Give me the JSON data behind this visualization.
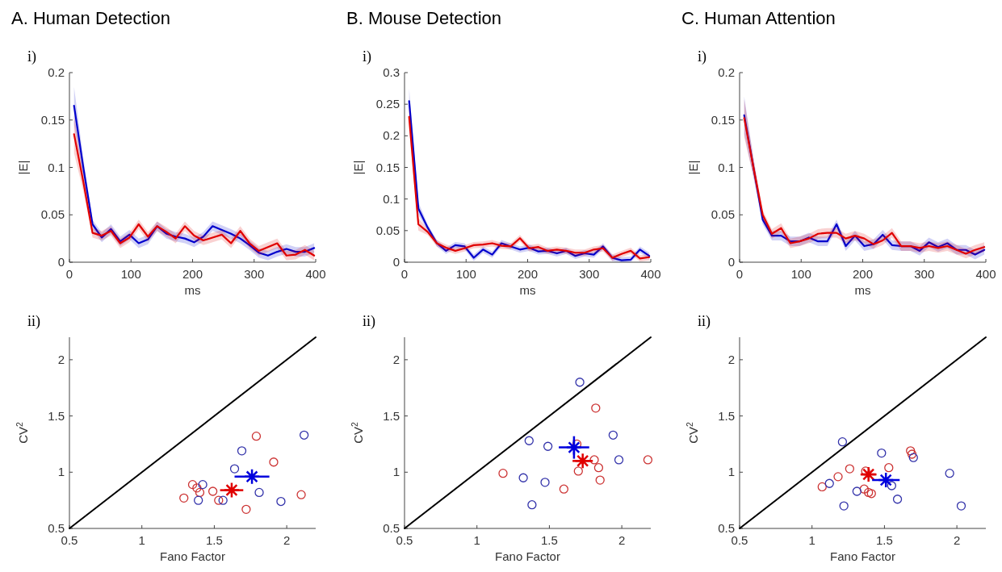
{
  "chart_data": [
    {
      "type": "line",
      "title": "A.  Human Detection",
      "annotations": [
        "i)"
      ],
      "xlabel": "ms",
      "ylabel": "|E|",
      "xlim": [
        0,
        400
      ],
      "xticks": [
        0,
        100,
        200,
        300,
        400
      ],
      "ylim": [
        0,
        0.2
      ],
      "yticks": [
        0,
        0.05,
        0.1,
        0.15,
        0.2
      ],
      "x": [
        7.5,
        22.5,
        37.5,
        52.5,
        67.5,
        82.5,
        97.5,
        112.5,
        127.5,
        142.5,
        157.5,
        172.5,
        187.5,
        202.5,
        217.5,
        232.5,
        247.5,
        262.5,
        277.5,
        292.5,
        307.5,
        322.5,
        337.5,
        352.5,
        367.5,
        382.5,
        397.5
      ],
      "series": [
        {
          "color": "#0000cc",
          "values": [
            0.165,
            0.1,
            0.04,
            0.026,
            0.035,
            0.022,
            0.029,
            0.02,
            0.024,
            0.038,
            0.03,
            0.027,
            0.025,
            0.021,
            0.027,
            0.038,
            0.034,
            0.03,
            0.025,
            0.018,
            0.01,
            0.007,
            0.011,
            0.014,
            0.011,
            0.011,
            0.015
          ],
          "lower": [
            0.145,
            0.09,
            0.035,
            0.021,
            0.03,
            0.017,
            0.024,
            0.015,
            0.019,
            0.033,
            0.025,
            0.022,
            0.02,
            0.016,
            0.022,
            0.033,
            0.029,
            0.025,
            0.02,
            0.013,
            0.005,
            0.002,
            0.006,
            0.009,
            0.006,
            0.006,
            0.01
          ],
          "upper": [
            0.185,
            0.11,
            0.045,
            0.031,
            0.04,
            0.027,
            0.034,
            0.025,
            0.029,
            0.043,
            0.035,
            0.032,
            0.03,
            0.026,
            0.032,
            0.043,
            0.039,
            0.035,
            0.03,
            0.023,
            0.015,
            0.012,
            0.016,
            0.019,
            0.016,
            0.016,
            0.02
          ]
        },
        {
          "color": "#e00000",
          "values": [
            0.135,
            0.085,
            0.031,
            0.028,
            0.033,
            0.02,
            0.026,
            0.04,
            0.027,
            0.038,
            0.032,
            0.025,
            0.038,
            0.028,
            0.023,
            0.026,
            0.029,
            0.02,
            0.033,
            0.02,
            0.012,
            0.016,
            0.02,
            0.007,
            0.008,
            0.013,
            0.007
          ],
          "lower": [
            0.115,
            0.075,
            0.026,
            0.023,
            0.028,
            0.015,
            0.021,
            0.035,
            0.022,
            0.033,
            0.027,
            0.02,
            0.033,
            0.023,
            0.018,
            0.021,
            0.024,
            0.015,
            0.028,
            0.015,
            0.007,
            0.011,
            0.015,
            0.002,
            0.003,
            0.008,
            0.002
          ],
          "upper": [
            0.155,
            0.095,
            0.036,
            0.033,
            0.038,
            0.025,
            0.031,
            0.045,
            0.032,
            0.043,
            0.037,
            0.03,
            0.043,
            0.033,
            0.028,
            0.031,
            0.034,
            0.025,
            0.038,
            0.025,
            0.017,
            0.021,
            0.025,
            0.012,
            0.013,
            0.018,
            0.012
          ]
        }
      ]
    },
    {
      "type": "line",
      "title": "B.  Mouse Detection",
      "annotations": [
        "i)"
      ],
      "xlabel": "ms",
      "ylabel": "|E|",
      "xlim": [
        0,
        400
      ],
      "xticks": [
        0,
        100,
        200,
        300,
        400
      ],
      "ylim": [
        0,
        0.3
      ],
      "yticks": [
        0,
        0.05,
        0.1,
        0.15,
        0.2,
        0.25,
        0.3
      ],
      "x": [
        7.5,
        22.5,
        37.5,
        52.5,
        67.5,
        82.5,
        97.5,
        112.5,
        127.5,
        142.5,
        157.5,
        172.5,
        187.5,
        202.5,
        217.5,
        232.5,
        247.5,
        262.5,
        277.5,
        292.5,
        307.5,
        322.5,
        337.5,
        352.5,
        367.5,
        382.5,
        397.5
      ],
      "series": [
        {
          "color": "#0000cc",
          "values": [
            0.255,
            0.085,
            0.055,
            0.03,
            0.018,
            0.027,
            0.025,
            0.007,
            0.02,
            0.012,
            0.03,
            0.025,
            0.02,
            0.023,
            0.017,
            0.018,
            0.014,
            0.018,
            0.01,
            0.014,
            0.012,
            0.025,
            0.007,
            0.003,
            0.004,
            0.02,
            0.01
          ],
          "lower": [
            0.235,
            0.075,
            0.05,
            0.025,
            0.013,
            0.022,
            0.02,
            0.002,
            0.015,
            0.007,
            0.025,
            0.02,
            0.015,
            0.018,
            0.012,
            0.013,
            0.009,
            0.013,
            0.005,
            0.009,
            0.007,
            0.02,
            0.002,
            0,
            0,
            0.015,
            0.005
          ],
          "upper": [
            0.275,
            0.095,
            0.06,
            0.035,
            0.023,
            0.032,
            0.03,
            0.012,
            0.025,
            0.017,
            0.035,
            0.03,
            0.025,
            0.028,
            0.022,
            0.023,
            0.019,
            0.023,
            0.015,
            0.019,
            0.017,
            0.03,
            0.012,
            0.008,
            0.009,
            0.025,
            0.015
          ]
        },
        {
          "color": "#e00000",
          "values": [
            0.23,
            0.06,
            0.048,
            0.03,
            0.023,
            0.018,
            0.022,
            0.027,
            0.028,
            0.03,
            0.026,
            0.025,
            0.038,
            0.022,
            0.024,
            0.018,
            0.02,
            0.018,
            0.015,
            0.015,
            0.02,
            0.022,
            0.007,
            0.013,
            0.018,
            0.006,
            0.008
          ],
          "lower": [
            0.21,
            0.05,
            0.043,
            0.025,
            0.018,
            0.013,
            0.017,
            0.022,
            0.023,
            0.025,
            0.021,
            0.02,
            0.033,
            0.017,
            0.019,
            0.013,
            0.015,
            0.013,
            0.01,
            0.01,
            0.015,
            0.017,
            0.002,
            0.008,
            0.013,
            0.001,
            0.003
          ],
          "upper": [
            0.25,
            0.07,
            0.053,
            0.035,
            0.028,
            0.023,
            0.027,
            0.032,
            0.033,
            0.035,
            0.031,
            0.03,
            0.043,
            0.027,
            0.029,
            0.023,
            0.025,
            0.023,
            0.02,
            0.02,
            0.025,
            0.027,
            0.012,
            0.018,
            0.023,
            0.011,
            0.013
          ]
        }
      ]
    },
    {
      "type": "line",
      "title": "C.  Human Attention",
      "annotations": [
        "i)"
      ],
      "xlabel": "ms",
      "ylabel": "|E|",
      "xlim": [
        0,
        400
      ],
      "xticks": [
        0,
        100,
        200,
        300,
        400
      ],
      "ylim": [
        0,
        0.2
      ],
      "yticks": [
        0,
        0.05,
        0.1,
        0.15,
        0.2
      ],
      "x": [
        7.5,
        22.5,
        37.5,
        52.5,
        67.5,
        82.5,
        97.5,
        112.5,
        127.5,
        142.5,
        157.5,
        172.5,
        187.5,
        202.5,
        217.5,
        232.5,
        247.5,
        262.5,
        277.5,
        292.5,
        307.5,
        322.5,
        337.5,
        352.5,
        367.5,
        382.5,
        397.5
      ],
      "series": [
        {
          "color": "#0000cc",
          "values": [
            0.155,
            0.1,
            0.045,
            0.028,
            0.028,
            0.022,
            0.022,
            0.026,
            0.022,
            0.022,
            0.04,
            0.017,
            0.028,
            0.017,
            0.019,
            0.029,
            0.018,
            0.017,
            0.017,
            0.012,
            0.021,
            0.016,
            0.02,
            0.013,
            0.013,
            0.008,
            0.013
          ],
          "lower": [
            0.135,
            0.09,
            0.04,
            0.023,
            0.023,
            0.017,
            0.017,
            0.021,
            0.017,
            0.017,
            0.035,
            0.012,
            0.023,
            0.012,
            0.014,
            0.024,
            0.013,
            0.012,
            0.012,
            0.007,
            0.016,
            0.011,
            0.015,
            0.008,
            0.008,
            0.003,
            0.008
          ],
          "upper": [
            0.175,
            0.11,
            0.05,
            0.033,
            0.033,
            0.027,
            0.027,
            0.031,
            0.027,
            0.027,
            0.045,
            0.022,
            0.033,
            0.022,
            0.024,
            0.034,
            0.023,
            0.022,
            0.022,
            0.017,
            0.026,
            0.021,
            0.025,
            0.018,
            0.018,
            0.013,
            0.018
          ]
        },
        {
          "color": "#e00000",
          "values": [
            0.152,
            0.1,
            0.05,
            0.03,
            0.036,
            0.02,
            0.022,
            0.025,
            0.03,
            0.031,
            0.031,
            0.025,
            0.028,
            0.025,
            0.019,
            0.023,
            0.031,
            0.017,
            0.017,
            0.015,
            0.017,
            0.015,
            0.017,
            0.013,
            0.009,
            0.013,
            0.016
          ],
          "lower": [
            0.132,
            0.09,
            0.045,
            0.025,
            0.031,
            0.015,
            0.017,
            0.02,
            0.025,
            0.026,
            0.026,
            0.02,
            0.023,
            0.02,
            0.014,
            0.018,
            0.026,
            0.012,
            0.012,
            0.01,
            0.012,
            0.01,
            0.012,
            0.008,
            0.004,
            0.008,
            0.011
          ],
          "upper": [
            0.172,
            0.11,
            0.055,
            0.035,
            0.041,
            0.025,
            0.027,
            0.03,
            0.035,
            0.036,
            0.036,
            0.03,
            0.033,
            0.03,
            0.024,
            0.028,
            0.036,
            0.022,
            0.022,
            0.02,
            0.022,
            0.02,
            0.022,
            0.018,
            0.014,
            0.018,
            0.021
          ]
        }
      ]
    },
    {
      "type": "scatter",
      "annotations": [
        "ii)"
      ],
      "xlabel": "Fano Factor",
      "ylabel": "CV$^{2}$",
      "xlim": [
        0.5,
        2.2
      ],
      "xticks": [
        0.5,
        1,
        1.5,
        2
      ],
      "ylim": [
        0.5,
        2.2
      ],
      "yticks": [
        0.5,
        1,
        1.5,
        2
      ],
      "series": [
        {
          "type": "line",
          "color": "#000000",
          "x": [
            0.5,
            2.2
          ],
          "values": [
            0.5,
            2.2
          ]
        },
        {
          "marker": "circle",
          "color": "#cc3333",
          "x": [
            1.29,
            1.35,
            1.38,
            1.4,
            1.49,
            1.53,
            1.72,
            1.79,
            1.91,
            2.1
          ],
          "values": [
            0.77,
            0.89,
            0.86,
            0.82,
            0.83,
            0.75,
            0.67,
            1.32,
            1.09,
            0.8
          ]
        },
        {
          "marker": "circle",
          "color": "#3333aa",
          "x": [
            1.42,
            1.39,
            1.56,
            1.64,
            1.69,
            1.81,
            1.96,
            2.12
          ],
          "values": [
            0.89,
            0.75,
            0.75,
            1.03,
            1.19,
            0.82,
            0.74,
            1.33
          ]
        },
        {
          "color": "#e00000",
          "marker": "cross",
          "x": [
            1.62
          ],
          "values": [
            0.84
          ],
          "xerrors": [
            0.08
          ],
          "errors": [
            0.03
          ]
        },
        {
          "color": "#0000dd",
          "marker": "cross",
          "x": [
            1.76
          ],
          "values": [
            0.96
          ],
          "xerrors": [
            0.12
          ],
          "errors": [
            0.03
          ]
        }
      ]
    },
    {
      "type": "scatter",
      "annotations": [
        "ii)"
      ],
      "xlabel": "Fano Factor",
      "ylabel": "CV$^{2}$",
      "xlim": [
        0.5,
        2.2
      ],
      "xticks": [
        0.5,
        1,
        1.5,
        2
      ],
      "ylim": [
        0.5,
        2.2
      ],
      "yticks": [
        0.5,
        1,
        1.5,
        2
      ],
      "series": [
        {
          "type": "line",
          "color": "#000000",
          "x": [
            0.5,
            2.2
          ],
          "values": [
            0.5,
            2.2
          ]
        },
        {
          "marker": "circle",
          "color": "#cc3333",
          "x": [
            1.82,
            1.69,
            1.18,
            1.7,
            1.81,
            1.84,
            1.85,
            1.6,
            2.18
          ],
          "values": [
            1.57,
            1.25,
            0.99,
            1.01,
            1.11,
            1.04,
            0.93,
            0.85,
            1.11
          ]
        },
        {
          "marker": "circle",
          "color": "#3333aa",
          "x": [
            1.71,
            1.36,
            1.49,
            1.94,
            1.98,
            1.32,
            1.47,
            1.38
          ],
          "values": [
            1.8,
            1.28,
            1.23,
            1.33,
            1.11,
            0.95,
            0.91,
            0.71
          ]
        },
        {
          "color": "#e00000",
          "marker": "cross",
          "x": [
            1.73
          ],
          "values": [
            1.1
          ],
          "xerrors": [
            0.07
          ],
          "errors": [
            0.03
          ]
        },
        {
          "color": "#0000dd",
          "marker": "cross",
          "x": [
            1.67
          ],
          "values": [
            1.22
          ],
          "xerrors": [
            0.105
          ],
          "errors": [
            0.1
          ]
        }
      ]
    },
    {
      "type": "scatter",
      "annotations": [
        "ii)"
      ],
      "xlabel": "Fano Factor",
      "ylabel": "CV$^{2}$",
      "xlim": [
        0.5,
        2.2
      ],
      "xticks": [
        0.5,
        1,
        1.5,
        2
      ],
      "ylim": [
        0.5,
        2.2
      ],
      "yticks": [
        0.5,
        1,
        1.5,
        2
      ],
      "series": [
        {
          "type": "line",
          "color": "#000000",
          "x": [
            0.5,
            2.2
          ],
          "values": [
            0.5,
            2.2
          ]
        },
        {
          "marker": "circle",
          "color": "#cc3333",
          "x": [
            1.07,
            1.18,
            1.26,
            1.37,
            1.36,
            1.39,
            1.41,
            1.53,
            1.68,
            1.69
          ],
          "values": [
            0.87,
            0.96,
            1.03,
            1.01,
            0.85,
            0.82,
            0.81,
            1.04,
            1.19,
            1.16
          ]
        },
        {
          "marker": "circle",
          "color": "#3333aa",
          "x": [
            1.21,
            1.48,
            1.7,
            1.12,
            1.31,
            1.55,
            1.59,
            1.22,
            1.95,
            2.03
          ],
          "values": [
            1.27,
            1.17,
            1.13,
            0.9,
            0.83,
            0.88,
            0.76,
            0.7,
            0.99,
            0.7
          ]
        },
        {
          "color": "#e00000",
          "marker": "cross",
          "x": [
            1.39
          ],
          "values": [
            0.98
          ],
          "xerrors": [
            0.055
          ],
          "errors": [
            0.03
          ]
        },
        {
          "color": "#0000dd",
          "marker": "cross",
          "x": [
            1.51
          ],
          "values": [
            0.93
          ],
          "xerrors": [
            0.095
          ],
          "errors": [
            0.03
          ]
        }
      ]
    }
  ]
}
